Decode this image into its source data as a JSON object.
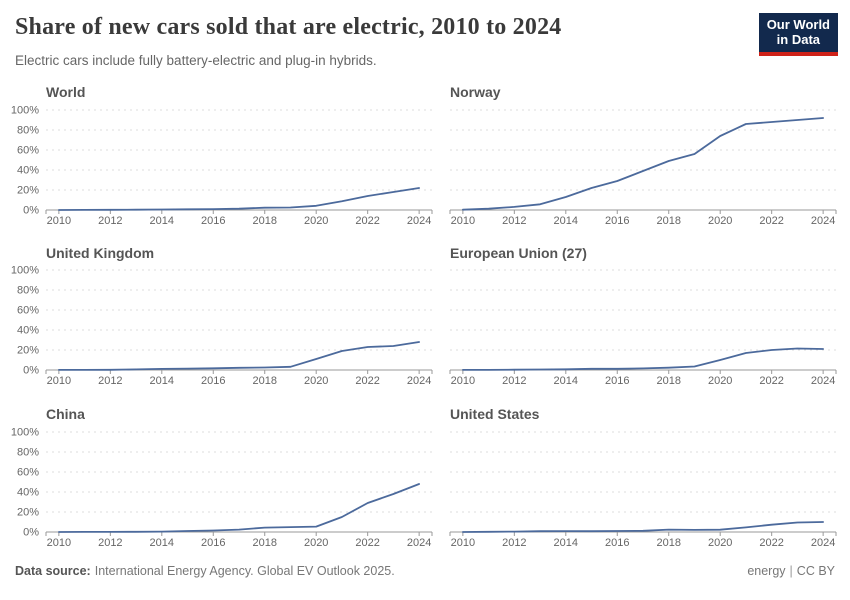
{
  "header": {
    "title": "Share of new cars sold that are electric, 2010 to 2024",
    "subtitle": "Electric cars include fully battery-electric and plug-in hybrids.",
    "logo": {
      "line1": "Our World",
      "line2": "in Data"
    }
  },
  "footer": {
    "datasource_label": "Data source:",
    "datasource_text": "International Energy Agency. Global EV Outlook 2025.",
    "topic": "energy",
    "separator": "|",
    "license": "CC BY"
  },
  "chart_data": {
    "type": "line",
    "title": "Share of new cars sold that are electric, 2010 to 2024",
    "xlabel": "",
    "ylabel": "",
    "x": [
      2010,
      2011,
      2012,
      2013,
      2014,
      2015,
      2016,
      2017,
      2018,
      2019,
      2020,
      2021,
      2022,
      2023,
      2024
    ],
    "series": [
      {
        "name": "World",
        "values": [
          0.0,
          0.1,
          0.2,
          0.3,
          0.5,
          0.7,
          0.9,
          1.3,
          2.3,
          2.5,
          4.2,
          8.7,
          14,
          18,
          22
        ]
      },
      {
        "name": "Norway",
        "values": [
          0.3,
          1.3,
          3.1,
          5.7,
          13,
          22,
          29,
          39,
          49,
          56,
          74,
          86,
          88,
          90,
          92
        ]
      },
      {
        "name": "United Kingdom",
        "values": [
          0.1,
          0.1,
          0.2,
          0.6,
          1.1,
          1.4,
          1.7,
          2.2,
          2.5,
          3.2,
          11,
          19,
          23,
          24,
          28
        ]
      },
      {
        "name": "European Union (27)",
        "values": [
          0.1,
          0.1,
          0.3,
          0.5,
          0.7,
          1.2,
          1.2,
          1.6,
          2.3,
          3.5,
          10,
          17,
          20,
          21.5,
          21
        ]
      },
      {
        "name": "China",
        "values": [
          0.0,
          0.1,
          0.1,
          0.2,
          0.4,
          1.0,
          1.5,
          2.4,
          4.4,
          4.9,
          5.4,
          15,
          29,
          38,
          48
        ]
      },
      {
        "name": "United States",
        "values": [
          0.0,
          0.2,
          0.4,
          0.8,
          0.9,
          0.8,
          1.0,
          1.2,
          2.4,
          2.1,
          2.3,
          4.6,
          7.3,
          9.5,
          10
        ]
      }
    ],
    "facet_layout": "2 columns x 3 rows, shared axes, y labels on left column only",
    "ylim": [
      0,
      100
    ],
    "yticks": [
      0,
      20,
      40,
      60,
      80,
      100
    ],
    "ytick_suffix": "%",
    "xticks": [
      2010,
      2012,
      2014,
      2016,
      2018,
      2020,
      2022,
      2024
    ],
    "grid": "horizontal dashed",
    "legend": "none",
    "colors": {
      "line": "#4c6a9c",
      "grid": "#dedede",
      "axis": "#999999",
      "tick_label": "#666666",
      "facet_title": "#555555",
      "title": "#3a3a3a",
      "subtitle": "#666666",
      "footer": "#777777",
      "logo_bg": "#12294d",
      "logo_bar": "#cf2219"
    }
  }
}
